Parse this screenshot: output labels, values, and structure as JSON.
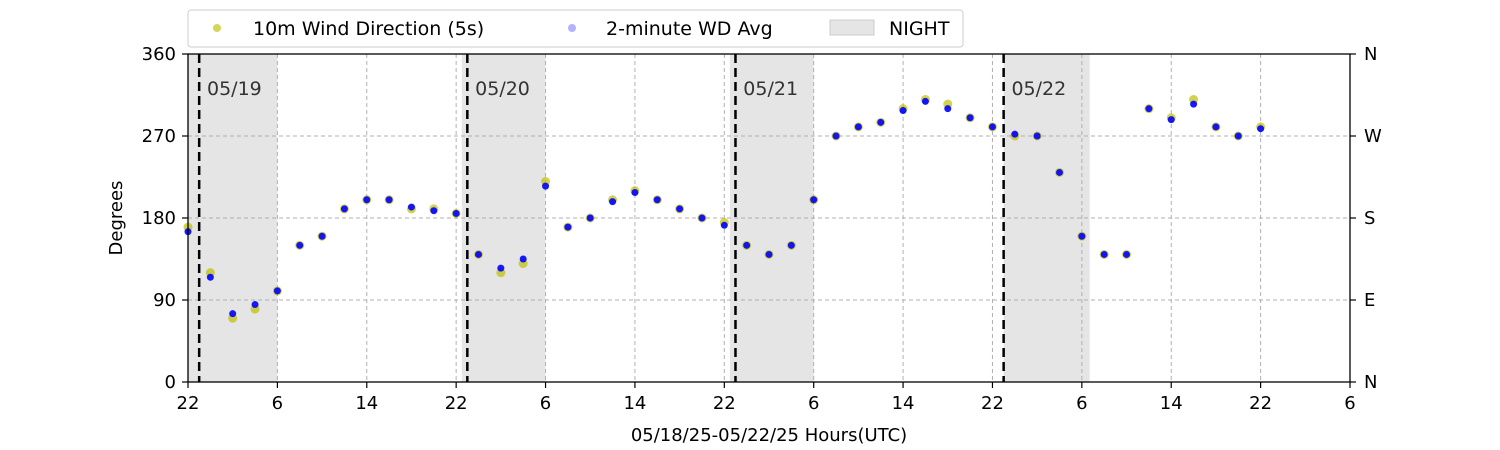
{
  "chart_data": {
    "type": "scatter",
    "title": "",
    "xlabel": "05/18/25-05/22/25  Hours(UTC)",
    "ylabel": "Degrees",
    "x_range_hours": [
      0,
      104
    ],
    "x_tick_positions_hours": [
      0,
      8,
      16,
      24,
      32,
      40,
      48,
      56,
      64,
      72,
      80,
      88,
      96,
      104
    ],
    "x_tick_labels": [
      "22",
      "6",
      "14",
      "22",
      "6",
      "14",
      "22",
      "6",
      "14",
      "22",
      "6",
      "14",
      "22",
      "6"
    ],
    "ylim": [
      0,
      360
    ],
    "y_ticks": [
      0,
      90,
      180,
      270,
      360
    ],
    "y_tick_labels": [
      "0",
      "90",
      "180",
      "270",
      "360"
    ],
    "right_y_ticks": [
      0,
      90,
      180,
      270,
      360
    ],
    "right_y_tick_labels": [
      "N",
      "E",
      "S",
      "W",
      "N"
    ],
    "grid": true,
    "legend_placement": "top",
    "legend": {
      "wd5s": "10m Wind Direction (5s)",
      "wd2m": "2-minute WD Avg",
      "night": "NIGHT"
    },
    "colors": {
      "wd5s": "#bfbf00",
      "wd2m": "#0000ff",
      "night": "#e5e5e5"
    },
    "night_periods_hours": [
      [
        0,
        8
      ],
      [
        24.5,
        32
      ],
      [
        48.5,
        56
      ],
      [
        73,
        80.7
      ]
    ],
    "day_boundaries_hours": [
      1,
      25,
      49,
      73
    ],
    "day_labels": [
      {
        "text": "05/19",
        "x_hours": 1.7
      },
      {
        "text": "05/20",
        "x_hours": 25.7
      },
      {
        "text": "05/21",
        "x_hours": 49.7
      },
      {
        "text": "05/22",
        "x_hours": 73.7
      }
    ],
    "series": [
      {
        "name": "10m Wind Direction (5s)",
        "x": [
          0,
          2,
          4,
          6,
          8,
          10,
          12,
          14,
          16,
          18,
          20,
          22,
          24,
          26,
          28,
          30,
          32,
          34,
          36,
          38,
          40,
          42,
          44,
          46,
          48,
          50,
          52,
          54,
          56,
          58,
          60,
          62,
          64,
          66,
          68,
          70,
          72,
          74,
          76,
          78,
          80,
          82,
          84,
          86,
          88,
          90,
          92,
          94,
          96
        ],
        "y": [
          170,
          120,
          70,
          80,
          100,
          150,
          160,
          190,
          200,
          200,
          190,
          190,
          185,
          140,
          120,
          130,
          220,
          170,
          180,
          200,
          210,
          200,
          190,
          180,
          175,
          150,
          140,
          150,
          200,
          270,
          280,
          285,
          300,
          310,
          305,
          290,
          280,
          270,
          270,
          230,
          160,
          140,
          140,
          300,
          290,
          310,
          280,
          270,
          280
        ]
      },
      {
        "name": "2-minute WD Avg",
        "x": [
          0,
          2,
          4,
          6,
          8,
          10,
          12,
          14,
          16,
          18,
          20,
          22,
          24,
          26,
          28,
          30,
          32,
          34,
          36,
          38,
          40,
          42,
          44,
          46,
          48,
          50,
          52,
          54,
          56,
          58,
          60,
          62,
          64,
          66,
          68,
          70,
          72,
          74,
          76,
          78,
          80,
          82,
          84,
          86,
          88,
          90,
          92,
          94,
          96
        ],
        "y": [
          165,
          115,
          75,
          85,
          100,
          150,
          160,
          190,
          200,
          200,
          192,
          188,
          185,
          140,
          125,
          135,
          215,
          170,
          180,
          198,
          208,
          200,
          190,
          180,
          172,
          150,
          140,
          150,
          200,
          270,
          280,
          285,
          298,
          308,
          300,
          290,
          280,
          272,
          270,
          230,
          160,
          140,
          140,
          300,
          288,
          305,
          280,
          270,
          278
        ]
      }
    ]
  }
}
